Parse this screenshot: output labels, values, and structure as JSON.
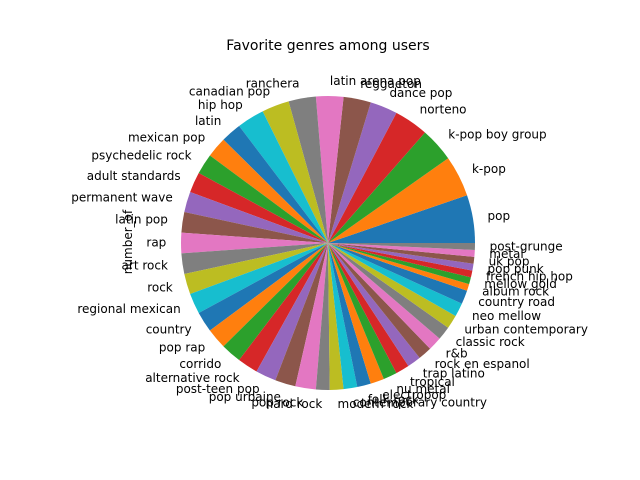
{
  "chart_data": {
    "type": "pie",
    "title": "Favorite genres among users",
    "ylabel": "number_of",
    "start_angle_deg": 0,
    "direction": "counterclockwise",
    "palette": [
      "#1f77b4",
      "#ff7f0e",
      "#2ca02c",
      "#d62728",
      "#9467bd",
      "#8c564b",
      "#e377c2",
      "#7f7f7f",
      "#bcbd22",
      "#17becf"
    ],
    "categories": [
      "pop",
      "k-pop",
      "k-pop boy group",
      "norteno",
      "dance pop",
      "reggaeton",
      "latin arena pop",
      "ranchera",
      "canadian pop",
      "hip hop",
      "latin",
      "mexican pop",
      "psychedelic rock",
      "adult standards",
      "permanent wave",
      "latin pop",
      "rap",
      "art rock",
      "rock",
      "regional mexican",
      "country",
      "pop rap",
      "corrido",
      "alternative rock",
      "post-teen pop",
      "pop urbaine",
      "pop rock",
      "hard rock",
      "modern rock",
      "contemporary country",
      "folk rock",
      "electropop",
      "nu metal",
      "tropical",
      "trap latino",
      "rock en espanol",
      "r&b",
      "classic rock",
      "urban contemporary",
      "neo mellow",
      "country road",
      "album rock",
      "mellow gold",
      "french hip hop",
      "pop punk",
      "uk pop",
      "metal",
      "post-grunge"
    ],
    "values": [
      7,
      6,
      5,
      5,
      4,
      4,
      4,
      4,
      4,
      4,
      3,
      3,
      3,
      3,
      3,
      3,
      3,
      3,
      3,
      3,
      3,
      3,
      3,
      3,
      3,
      3,
      3,
      2,
      2,
      2,
      2,
      2,
      2,
      2,
      2,
      2,
      2,
      2,
      2,
      2,
      2,
      1,
      1,
      1,
      1,
      1,
      1,
      1
    ]
  }
}
